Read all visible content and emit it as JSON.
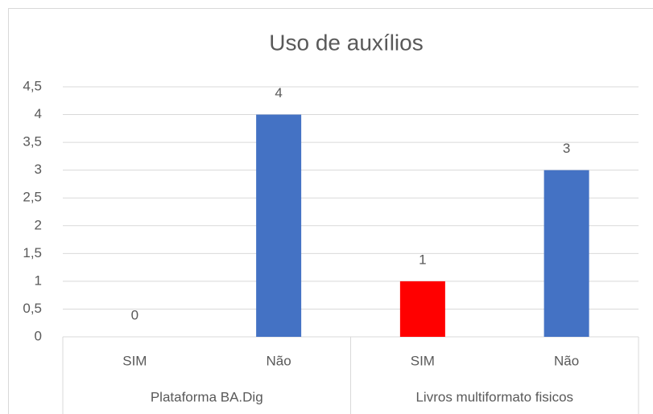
{
  "chart_data": {
    "type": "bar",
    "title": "Uso de auxílios",
    "categories": [
      "SIM",
      "Não",
      "SIM",
      "Não"
    ],
    "groups": [
      "Plataforma BA.Dig",
      "Livros multiformato fisicos"
    ],
    "values": [
      0,
      4,
      1,
      3
    ],
    "colors": [
      "#ff0000",
      "#4472c4",
      "#ff0000",
      "#4472c4"
    ],
    "ylim": [
      0,
      4.5
    ],
    "yticks": [
      0,
      {
        "value": 0.5,
        "label": "0,5"
      },
      1,
      {
        "value": 1.5,
        "label": "1,5"
      },
      2,
      {
        "value": 2.5,
        "label": "2,5"
      },
      3,
      {
        "value": 3.5,
        "label": "3,5"
      },
      4,
      {
        "value": 4.5,
        "label": "4,5"
      }
    ],
    "grid": true
  }
}
